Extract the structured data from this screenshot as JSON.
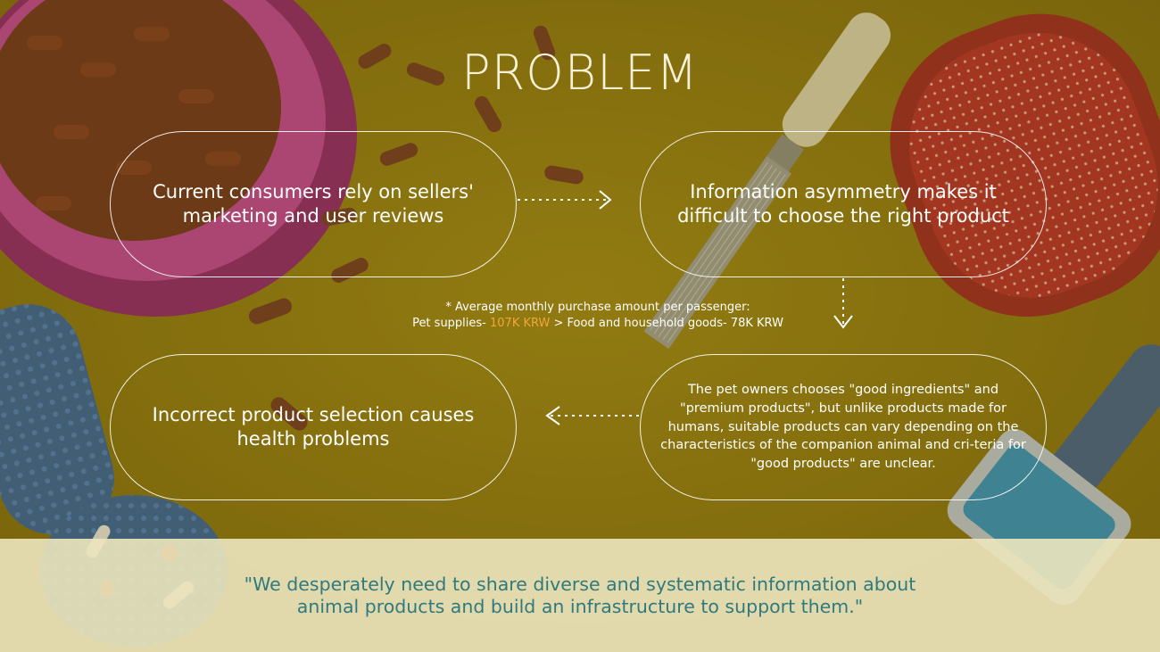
{
  "slide": {
    "title": "PROBLEM",
    "box_top_left": "Current consumers rely on sellers' marketing and user reviews",
    "box_top_right": "Information asymmetry makes it difficult to choose the right product",
    "note_line1": "* Average monthly purchase amount per passenger:",
    "note_line2_a": "Pet supplies-",
    "note_line2_highlight": "107K KRW",
    "note_line2_b": "> Food and household goods- 78K KRW",
    "box_bottom_right": "The pet owners chooses \"good ingredients\" and \"premium products\", but unlike products made for humans, suitable products can vary depending on the characteristics of the companion animal and cri-teria for \"good products\" are unclear.",
    "box_bottom_left": "Incorrect product selection causes health problems",
    "quote": "\"We desperately need to share diverse and systematic information about animal products and build an infrastructure to support them.\""
  },
  "colors": {
    "background": "#8a7410",
    "highlight": "#f0a73a",
    "quote_text": "#2f7a7e",
    "banner": "#ece6be"
  }
}
